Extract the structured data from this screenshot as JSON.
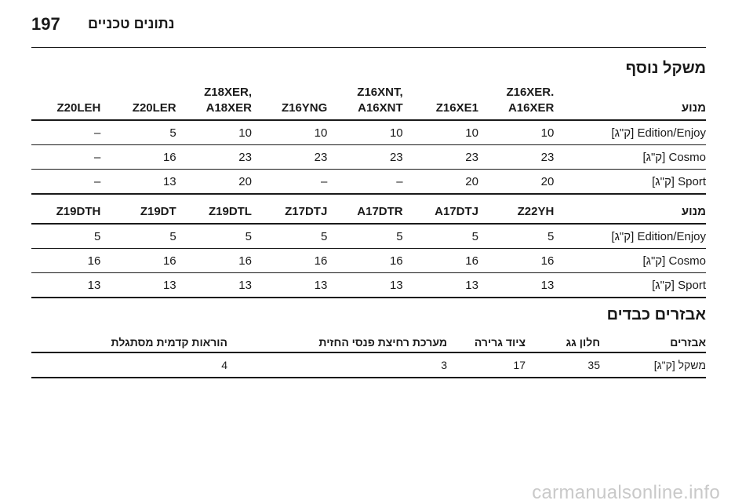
{
  "header": {
    "page_number": "197",
    "chapter_title": "נתונים טכניים"
  },
  "vehicle_load": {
    "section_title": "משקל נוסף",
    "table1": {
      "engine_label": "מנוע",
      "models": [
        [
          "Z16XER.",
          "A16XER"
        ],
        [
          "Z16XE1"
        ],
        [
          "Z16XNT,",
          "A16XNT"
        ],
        [
          "Z16YNG"
        ],
        [
          "Z18XER,",
          "A18XER"
        ],
        [
          "Z20LER"
        ],
        [
          "Z20LEH"
        ]
      ],
      "rows": [
        {
          "label": "Edition/Enjoy [ק\"ג]",
          "values": [
            "10",
            "10",
            "10",
            "10",
            "10",
            "5",
            "–"
          ]
        },
        {
          "label": "Cosmo [ק\"ג]",
          "values": [
            "23",
            "23",
            "23",
            "23",
            "23",
            "16",
            "–"
          ]
        },
        {
          "label": "Sport [ק\"ג]",
          "values": [
            "20",
            "20",
            "–",
            "–",
            "20",
            "13",
            "–"
          ]
        }
      ]
    },
    "table2": {
      "engine_label": "מנוע",
      "models": [
        "Z22YH",
        "A17DTJ",
        "A17DTR",
        "Z17DTJ",
        "Z19DTL",
        "Z19DT",
        "Z19DTH"
      ],
      "rows": [
        {
          "label": "Edition/Enjoy [ק\"ג]",
          "values": [
            "5",
            "5",
            "5",
            "5",
            "5",
            "5",
            "5"
          ]
        },
        {
          "label": "Cosmo [ק\"ג]",
          "values": [
            "16",
            "16",
            "16",
            "16",
            "16",
            "16",
            "16"
          ]
        },
        {
          "label": "Sport [ק\"ג]",
          "values": [
            "13",
            "13",
            "13",
            "13",
            "13",
            "13",
            "13"
          ]
        }
      ]
    }
  },
  "accessories": {
    "section_title": "אבזרים כבדים",
    "columns": [
      "אבזרים",
      "חלון גג",
      "ציוד גרירה",
      "מערכת רחיצת פנסי החזית",
      "הוראות קדמית מסתגלת"
    ],
    "row": {
      "label": "משקל [ק\"ג]",
      "values": [
        "35",
        "17",
        "3",
        "4"
      ]
    }
  },
  "watermark": "carmanualsonline.info"
}
